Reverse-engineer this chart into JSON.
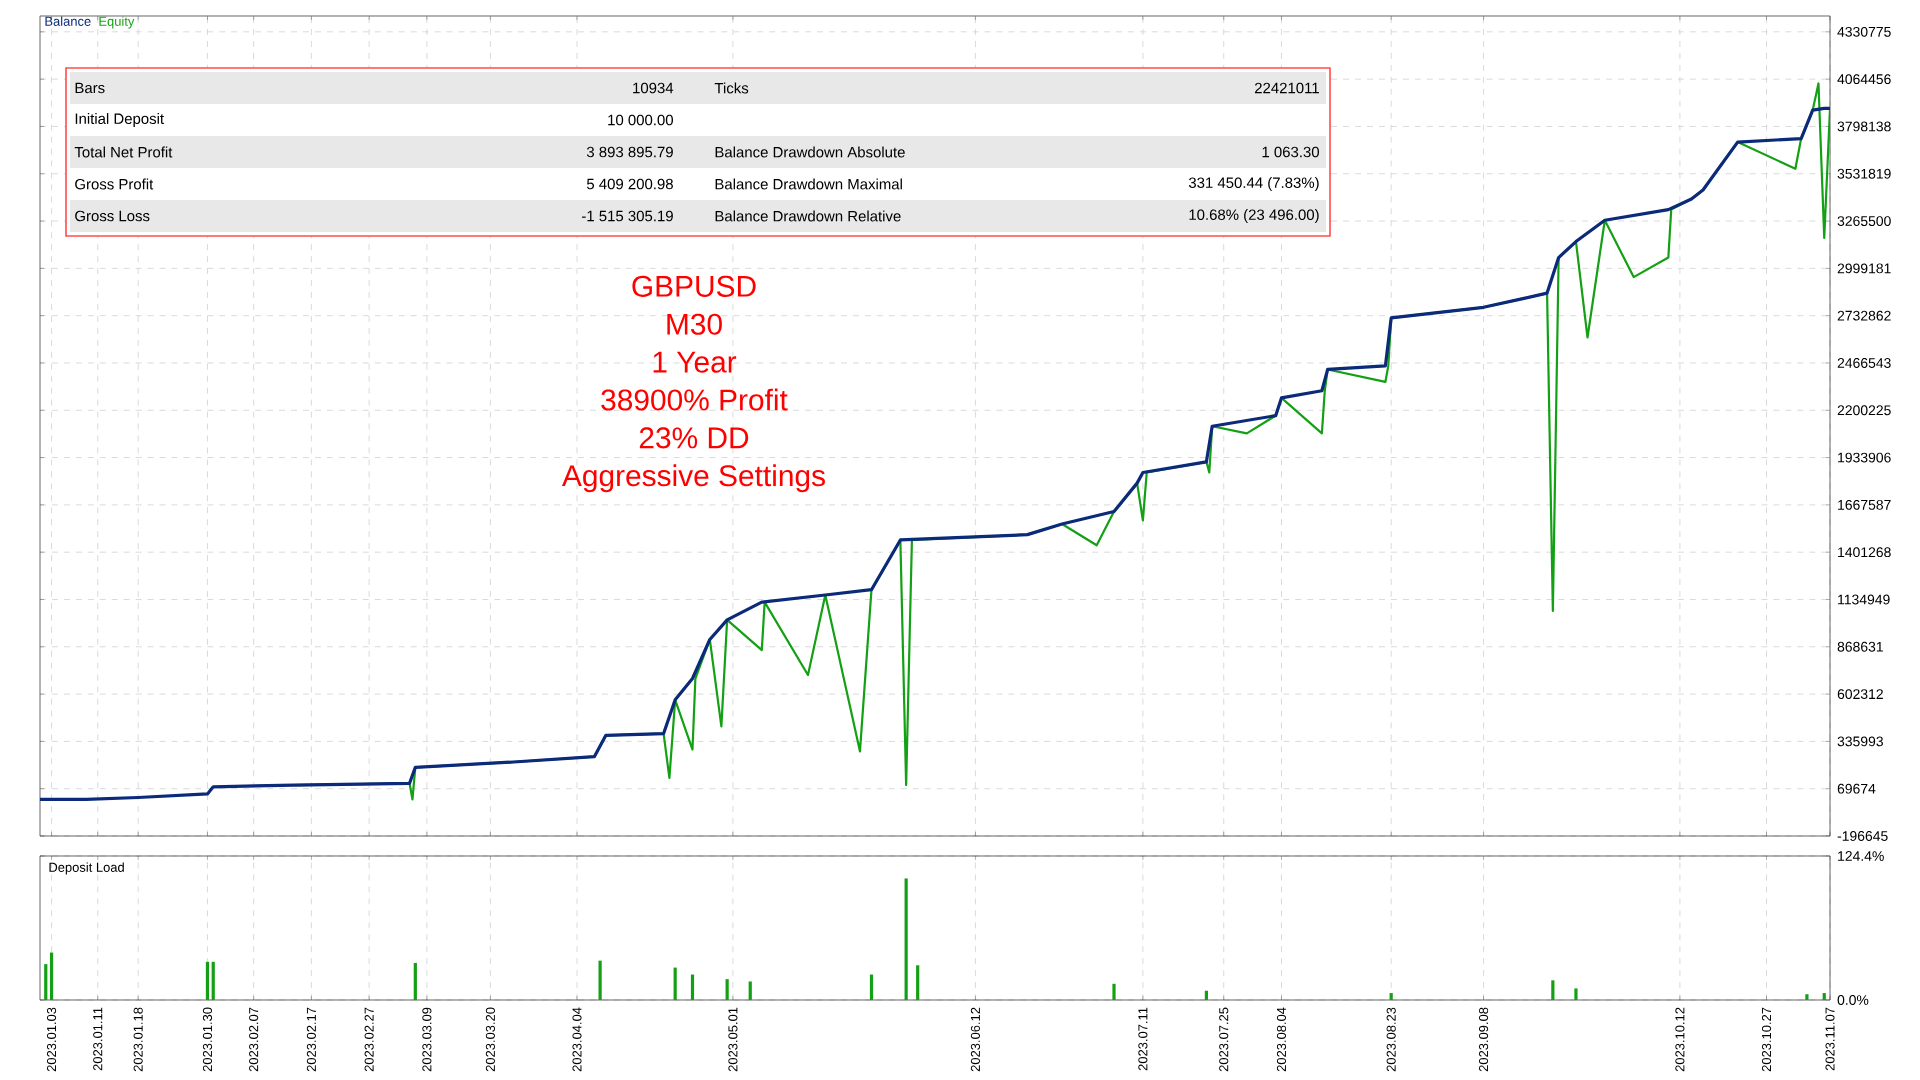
{
  "chart_data": [
    {
      "type": "line",
      "legend": "top left",
      "grid": true,
      "tick_labels": "y",
      "xlim": [
        "2023-01-01",
        "2023-11-07"
      ],
      "ylim": [
        -196645,
        4420000
      ],
      "xticks": [
        {
          "value": "2023-01-03",
          "label": null
        },
        {
          "value": "2023-01-11",
          "label": null
        },
        {
          "value": "2023-01-18",
          "label": null
        },
        {
          "value": "2023-01-30",
          "label": null
        },
        {
          "value": "2023-02-07",
          "label": null
        },
        {
          "value": "2023-02-17",
          "label": null
        },
        {
          "value": "2023-02-27",
          "label": null
        },
        {
          "value": "2023-03-09",
          "label": null
        },
        {
          "value": "2023-03-20",
          "label": null
        },
        {
          "value": "2023-04-04",
          "label": null
        },
        {
          "value": "2023-05-01",
          "label": null
        },
        {
          "value": "2023-06-12",
          "label": null
        },
        {
          "value": "2023-07-11",
          "label": null
        },
        {
          "value": "2023-07-25",
          "label": null
        },
        {
          "value": "2023-08-04",
          "label": null
        },
        {
          "value": "2023-08-23",
          "label": null
        },
        {
          "value": "2023-09-08",
          "label": null
        },
        {
          "value": "2023-10-12",
          "label": null
        },
        {
          "value": "2023-10-27",
          "label": null
        },
        {
          "value": "2023-11-07",
          "label": null
        }
      ],
      "yticks": [
        -196645,
        69674,
        335993,
        602312,
        868631,
        1134949,
        1401268,
        1667587,
        1933906,
        2200225,
        2466543,
        2732862,
        2999181,
        3265500,
        3531819,
        3798138,
        4064456,
        4330775
      ],
      "annotations": [
        "GBPUSD",
        "M30",
        "1 Year",
        "38900% Profit",
        "23% DD",
        "Aggressive Settings"
      ],
      "series": [
        {
          "name": "Balance",
          "color": "#0b2a7a",
          "x": [
            "2023-01-01",
            "2023-01-09",
            "2023-01-18",
            "2023-01-30",
            "2023-01-31",
            "2023-02-14",
            "2023-03-06",
            "2023-03-07",
            "2023-03-24",
            "2023-04-07",
            "2023-04-09",
            "2023-04-19",
            "2023-04-21",
            "2023-04-24",
            "2023-04-27",
            "2023-04-30",
            "2023-05-06",
            "2023-05-17",
            "2023-05-25",
            "2023-05-30",
            "2023-06-21",
            "2023-06-27",
            "2023-07-06",
            "2023-07-10",
            "2023-07-11",
            "2023-07-22",
            "2023-07-23",
            "2023-08-03",
            "2023-08-04",
            "2023-08-11",
            "2023-08-12",
            "2023-08-22",
            "2023-08-23",
            "2023-09-08",
            "2023-09-15",
            "2023-09-19",
            "2023-09-21",
            "2023-09-24",
            "2023-09-29",
            "2023-10-10",
            "2023-10-14",
            "2023-10-16",
            "2023-10-22",
            "2023-11-02",
            "2023-11-04",
            "2023-11-06",
            "2023-11-07"
          ],
          "values": [
            10000,
            10000,
            20000,
            40000,
            80000,
            90000,
            100000,
            190000,
            220000,
            250000,
            370000,
            380000,
            570000,
            690000,
            910000,
            1020000,
            1120000,
            1160000,
            1190000,
            1470000,
            1500000,
            1560000,
            1630000,
            1790000,
            1850000,
            1910000,
            2110000,
            2170000,
            2270000,
            2310000,
            2430000,
            2450000,
            2720000,
            2780000,
            2830000,
            2860000,
            3060000,
            3150000,
            3270000,
            3330000,
            3390000,
            3440000,
            3710000,
            3730000,
            3890000,
            3900000,
            3900000
          ]
        },
        {
          "name": "Equity",
          "color": "#14a014",
          "x": [
            "2023-02-14",
            "2023-03-06",
            "2023-03-06T12:00",
            "2023-03-07",
            "2023-03-24",
            "2023-04-07",
            "2023-04-09",
            "2023-04-19",
            "2023-04-20",
            "2023-04-21",
            "2023-04-24",
            "2023-04-24T12:00",
            "2023-04-27",
            "2023-04-29",
            "2023-04-30",
            "2023-05-06",
            "2023-05-06T12:00",
            "2023-05-14",
            "2023-05-17",
            "2023-05-23",
            "2023-05-25",
            "2023-05-30",
            "2023-05-31",
            "2023-06-01",
            "2023-06-21",
            "2023-06-27",
            "2023-07-03",
            "2023-07-06",
            "2023-07-10",
            "2023-07-11",
            "2023-07-11T16:00",
            "2023-07-22",
            "2023-07-22T12:00",
            "2023-07-23",
            "2023-07-29",
            "2023-08-03",
            "2023-08-04",
            "2023-08-11",
            "2023-08-11T12:00",
            "2023-08-12",
            "2023-08-22",
            "2023-08-22T12:00",
            "2023-08-23",
            "2023-09-08",
            "2023-09-15",
            "2023-09-19",
            "2023-09-20",
            "2023-09-21",
            "2023-09-24",
            "2023-09-26",
            "2023-09-29",
            "2023-10-04",
            "2023-10-10",
            "2023-10-10T12:00",
            "2023-10-14",
            "2023-10-16",
            "2023-10-22",
            "2023-11-01",
            "2023-11-02",
            "2023-11-04",
            "2023-11-05",
            "2023-11-06",
            "2023-11-07"
          ],
          "values": [
            90000,
            100000,
            10000,
            190000,
            220000,
            250000,
            370000,
            380000,
            130000,
            570000,
            290000,
            690000,
            910000,
            420000,
            1020000,
            850000,
            1120000,
            710000,
            1160000,
            280000,
            1190000,
            1470000,
            90000,
            1470000,
            1500000,
            1560000,
            1440000,
            1630000,
            1790000,
            1580000,
            1850000,
            1910000,
            1850000,
            2110000,
            2070000,
            2170000,
            2270000,
            2070000,
            2310000,
            2430000,
            2360000,
            2450000,
            2720000,
            2780000,
            2830000,
            2860000,
            1070000,
            3060000,
            3150000,
            2610000,
            3270000,
            2950000,
            3060000,
            3330000,
            3390000,
            3440000,
            3710000,
            3560000,
            3730000,
            3890000,
            4040000,
            3170000,
            3900000
          ]
        }
      ]
    },
    {
      "type": "other",
      "cells": [
        [
          "Bars",
          "10934",
          "Ticks",
          "22421011"
        ],
        [
          "Initial Deposit",
          "10 000.00",
          null,
          null
        ],
        [
          "Total Net Profit",
          "3 893 895.79",
          "Balance Drawdown Absolute",
          "1 063.30"
        ],
        [
          "Gross Profit",
          "5 409 200.98",
          "Balance Drawdown Maximal",
          "331 450.44 (7.83%)"
        ],
        [
          "Gross Loss",
          "-1 515 305.19",
          "Balance Drawdown Relative",
          "10.68% (23 496.00)"
        ]
      ]
    },
    {
      "type": "bar",
      "title": "Deposit Load",
      "grid": true,
      "color": "#14a014",
      "xlim": [
        "2023-01-01",
        "2023-11-07"
      ],
      "ylim": [
        0,
        124.4
      ],
      "xticks": [
        {
          "value": "2023-01-03",
          "label": "2023.01.03"
        },
        {
          "value": "2023-01-11",
          "label": "2023.01.11"
        },
        {
          "value": "2023-01-18",
          "label": "2023.01.18"
        },
        {
          "value": "2023-01-30",
          "label": "2023.01.30"
        },
        {
          "value": "2023-02-07",
          "label": "2023.02.07"
        },
        {
          "value": "2023-02-17",
          "label": "2023.02.17"
        },
        {
          "value": "2023-02-27",
          "label": "2023.02.27"
        },
        {
          "value": "2023-03-09",
          "label": "2023.03.09"
        },
        {
          "value": "2023-03-20",
          "label": "2023.03.20"
        },
        {
          "value": "2023-04-04",
          "label": "2023.04.04"
        },
        {
          "value": "2023-05-01",
          "label": "2023.05.01"
        },
        {
          "value": "2023-06-12",
          "label": "2023.06.12"
        },
        {
          "value": "2023-07-11",
          "label": "2023.07.11"
        },
        {
          "value": "2023-07-25",
          "label": "2023.07.25"
        },
        {
          "value": "2023-08-04",
          "label": "2023.08.04"
        },
        {
          "value": "2023-08-23",
          "label": "2023.08.23"
        },
        {
          "value": "2023-09-08",
          "label": "2023.09.08"
        },
        {
          "value": "2023-10-12",
          "label": "2023.10.12"
        },
        {
          "value": "2023-10-27",
          "label": "2023.10.27"
        },
        {
          "value": "2023-11-07",
          "label": "2023.11.07"
        }
      ],
      "yticks": [
        {
          "value": 0,
          "label": "0.0%"
        },
        {
          "value": 124.4,
          "label": "124.4%"
        }
      ],
      "x": [
        "2023-01-02",
        "2023-01-03",
        "2023-01-30",
        "2023-01-31",
        "2023-03-07",
        "2023-04-08",
        "2023-04-21",
        "2023-04-24",
        "2023-04-30",
        "2023-05-04",
        "2023-05-25",
        "2023-05-31",
        "2023-06-02",
        "2023-07-06",
        "2023-07-22",
        "2023-08-23",
        "2023-09-20",
        "2023-09-24",
        "2023-11-03",
        "2023-11-06"
      ],
      "values": [
        31,
        41,
        33,
        33,
        32,
        34,
        28,
        22,
        18,
        16,
        22,
        105,
        30,
        14,
        8,
        6,
        17,
        10,
        5,
        6
      ]
    }
  ]
}
